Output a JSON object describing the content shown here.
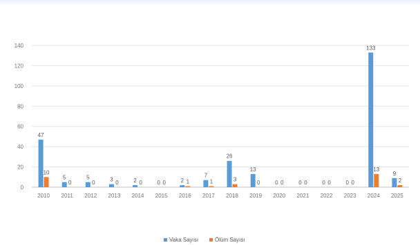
{
  "chart_data": {
    "type": "bar",
    "categories": [
      "2010",
      "2011",
      "2012",
      "2013",
      "2014",
      "2015",
      "2016",
      "2017",
      "2018",
      "2019",
      "2020",
      "2021",
      "2022",
      "2023",
      "2024",
      "2025"
    ],
    "series": [
      {
        "name": "Vaka Sayısı",
        "color": "#5b9bd5",
        "values": [
          47,
          5,
          5,
          3,
          2,
          0,
          2,
          7,
          26,
          13,
          0,
          0,
          0,
          0,
          133,
          9
        ],
        "labels": [
          "47",
          "5",
          "5",
          "3",
          "2",
          "0",
          "2",
          "7",
          "26",
          "13",
          "0",
          "0",
          "0",
          "0",
          "133",
          "9"
        ]
      },
      {
        "name": "Ölüm Sayısı",
        "color": "#ed7d31",
        "values": [
          10,
          0,
          0,
          0,
          0,
          0,
          1,
          1,
          3,
          0,
          0,
          0,
          0,
          0,
          13,
          2
        ],
        "labels": [
          "10",
          "0",
          "0",
          "0",
          "0",
          "0",
          "1",
          "1",
          "3",
          "0",
          "0",
          "0",
          "0",
          "0",
          "13",
          "2"
        ]
      }
    ],
    "ylim": [
      0,
      140
    ],
    "yticks": [
      0,
      20,
      40,
      60,
      80,
      100,
      120,
      140
    ],
    "grid": true,
    "legend": "bottom-center"
  }
}
